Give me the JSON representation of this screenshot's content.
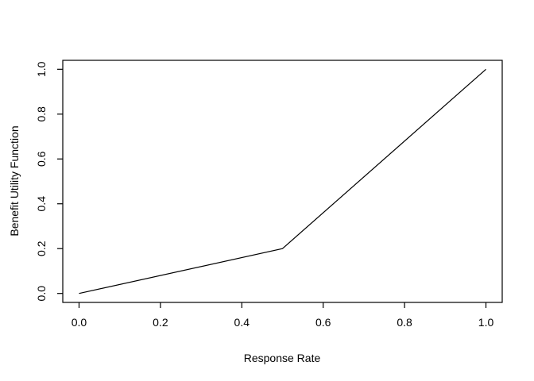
{
  "chart_data": {
    "type": "line",
    "title": "",
    "xlabel": "Response Rate",
    "ylabel": "Benefit Utility Function",
    "x": [
      0.0,
      0.5,
      1.0
    ],
    "y": [
      0.0,
      0.2,
      1.0
    ],
    "xlim": [
      0.0,
      1.0
    ],
    "ylim": [
      0.0,
      1.0
    ],
    "x_ticks": {
      "values": [
        0.0,
        0.2,
        0.4,
        0.6,
        0.8,
        1.0
      ],
      "labels": [
        "0.0",
        "0.2",
        "0.4",
        "0.6",
        "0.8",
        "1.0"
      ]
    },
    "y_ticks": {
      "values": [
        0.0,
        0.2,
        0.4,
        0.6,
        0.8,
        1.0
      ],
      "labels": [
        "0.0",
        "0.2",
        "0.4",
        "0.6",
        "0.8",
        "1.0"
      ]
    },
    "grid": false,
    "legend": "none",
    "line_color": "#000000",
    "axis_color": "#000000",
    "text_color": "#000000",
    "background_color": "#ffffff"
  }
}
